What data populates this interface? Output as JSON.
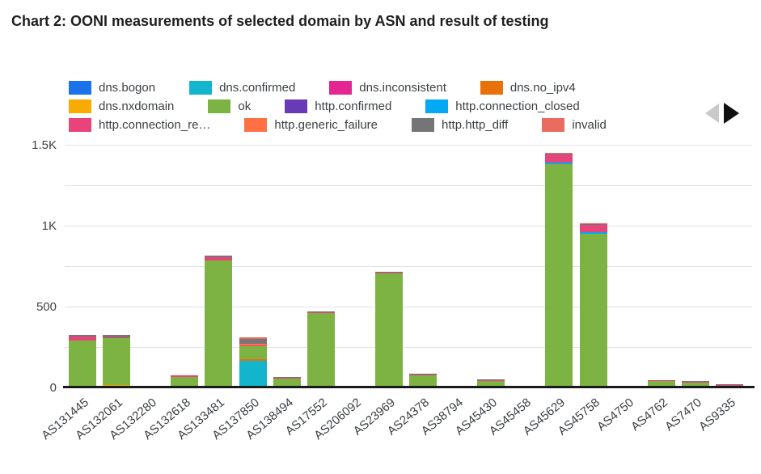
{
  "title": "Chart 2: OONI measurements of selected domain by ASN and result of testing",
  "legend": {
    "rows": [
      [
        0,
        1,
        2,
        3
      ],
      [
        4,
        5,
        6,
        7
      ],
      [
        8,
        9,
        10,
        11
      ]
    ],
    "nav": {
      "prev_icon": "left-triangle",
      "prev_enabled": false,
      "next_icon": "right-triangle",
      "next_enabled": true
    }
  },
  "chart_data": {
    "type": "bar",
    "stacked": true,
    "title": "Chart 2: OONI measurements of selected domain by ASN and result of testing",
    "xlabel": "",
    "ylabel": "",
    "ylim": [
      0,
      1500
    ],
    "grid_interval": 250,
    "grid": true,
    "legend_position": "top",
    "yticks": [
      {
        "value": 0,
        "label": "0"
      },
      {
        "value": 500,
        "label": "500"
      },
      {
        "value": 1000,
        "label": "1K"
      },
      {
        "value": 1500,
        "label": "1.5K"
      }
    ],
    "categories": [
      "AS131445",
      "AS132061",
      "AS132280",
      "AS132618",
      "AS133481",
      "AS137850",
      "AS138494",
      "AS17552",
      "AS206092",
      "AS23969",
      "AS24378",
      "AS38794",
      "AS45430",
      "AS45458",
      "AS45629",
      "AS45758",
      "AS4750",
      "AS4762",
      "AS7470",
      "AS9335"
    ],
    "series": [
      {
        "name": "dns.bogon",
        "color": "#1a73e8",
        "values": [
          0,
          0,
          0,
          0,
          0,
          0,
          0,
          0,
          0,
          0,
          0,
          0,
          0,
          0,
          0,
          0,
          0,
          0,
          0,
          0
        ]
      },
      {
        "name": "dns.confirmed",
        "color": "#12b5cb",
        "values": [
          0,
          0,
          0,
          0,
          0,
          160,
          0,
          0,
          0,
          0,
          0,
          0,
          0,
          0,
          0,
          0,
          0,
          0,
          0,
          0
        ]
      },
      {
        "name": "dns.inconsistent",
        "color": "#e52592",
        "values": [
          0,
          0,
          0,
          0,
          0,
          0,
          0,
          0,
          0,
          0,
          0,
          0,
          0,
          0,
          0,
          0,
          0,
          0,
          0,
          0
        ]
      },
      {
        "name": "dns.no_ipv4",
        "color": "#e8710a",
        "values": [
          0,
          0,
          0,
          0,
          0,
          10,
          0,
          0,
          0,
          0,
          0,
          0,
          0,
          0,
          0,
          0,
          0,
          0,
          0,
          0
        ]
      },
      {
        "name": "dns.nxdomain",
        "color": "#f9ab00",
        "values": [
          0,
          12,
          0,
          0,
          0,
          0,
          0,
          0,
          0,
          0,
          0,
          0,
          0,
          0,
          0,
          0,
          0,
          0,
          0,
          0
        ]
      },
      {
        "name": "ok",
        "color": "#7cb342",
        "values": [
          285,
          290,
          0,
          60,
          780,
          78,
          50,
          455,
          0,
          700,
          70,
          0,
          35,
          0,
          1375,
          945,
          0,
          35,
          25,
          5
        ]
      },
      {
        "name": "http.confirmed",
        "color": "#673ab7",
        "values": [
          0,
          0,
          0,
          0,
          0,
          0,
          0,
          0,
          0,
          0,
          0,
          0,
          0,
          0,
          0,
          0,
          0,
          0,
          0,
          0
        ]
      },
      {
        "name": "http.connection_closed",
        "color": "#03a9f4",
        "values": [
          0,
          0,
          0,
          0,
          0,
          0,
          0,
          0,
          0,
          0,
          0,
          0,
          0,
          0,
          10,
          10,
          0,
          0,
          0,
          0
        ]
      },
      {
        "name": "http.connection_re…",
        "color": "#e8437a",
        "values": [
          25,
          5,
          0,
          8,
          20,
          8,
          5,
          5,
          0,
          6,
          5,
          0,
          4,
          0,
          50,
          45,
          0,
          3,
          6,
          4
        ]
      },
      {
        "name": "http.generic_failure",
        "color": "#ff7043",
        "values": [
          0,
          0,
          0,
          0,
          0,
          8,
          0,
          0,
          0,
          0,
          0,
          0,
          0,
          0,
          0,
          0,
          0,
          0,
          0,
          0
        ]
      },
      {
        "name": "http.http_diff",
        "color": "#757575",
        "values": [
          10,
          12,
          0,
          0,
          8,
          30,
          5,
          5,
          0,
          6,
          5,
          0,
          4,
          0,
          6,
          5,
          0,
          3,
          5,
          4
        ]
      },
      {
        "name": "invalid",
        "color": "#ea6b60",
        "values": [
          0,
          0,
          0,
          0,
          0,
          12,
          0,
          0,
          0,
          0,
          0,
          0,
          0,
          0,
          6,
          6,
          0,
          0,
          0,
          0
        ]
      }
    ]
  }
}
